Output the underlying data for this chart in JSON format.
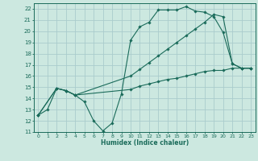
{
  "xlabel": "Humidex (Indice chaleur)",
  "bg_color": "#cce8e0",
  "grid_color": "#aacccc",
  "line_color": "#1a6b5a",
  "xlim": [
    -0.5,
    23.5
  ],
  "ylim": [
    11,
    22.5
  ],
  "xticks": [
    0,
    1,
    2,
    3,
    4,
    5,
    6,
    7,
    8,
    9,
    10,
    11,
    12,
    13,
    14,
    15,
    16,
    17,
    18,
    19,
    20,
    21,
    22,
    23
  ],
  "yticks": [
    11,
    12,
    13,
    14,
    15,
    16,
    17,
    18,
    19,
    20,
    21,
    22
  ],
  "line1_x": [
    0,
    1,
    2,
    3,
    4,
    5,
    6,
    7,
    8,
    9,
    10,
    11,
    12,
    13,
    14,
    15,
    16,
    17,
    18,
    19,
    20,
    21,
    22,
    23
  ],
  "line1_y": [
    12.5,
    13.0,
    14.9,
    14.7,
    14.3,
    13.7,
    12.0,
    11.1,
    11.8,
    14.4,
    19.2,
    20.4,
    20.8,
    21.9,
    21.9,
    21.9,
    22.2,
    21.8,
    21.7,
    21.3,
    19.9,
    17.1,
    16.7,
    16.7
  ],
  "line2_x": [
    0,
    2,
    3,
    4,
    10,
    11,
    12,
    13,
    14,
    15,
    16,
    17,
    18,
    19,
    20,
    21,
    22,
    23
  ],
  "line2_y": [
    12.5,
    14.9,
    14.7,
    14.3,
    16.0,
    16.6,
    17.2,
    17.8,
    18.4,
    19.0,
    19.6,
    20.2,
    20.8,
    21.5,
    21.3,
    17.1,
    16.7,
    16.7
  ],
  "line3_x": [
    0,
    2,
    3,
    4,
    10,
    11,
    12,
    13,
    14,
    15,
    16,
    17,
    18,
    19,
    20,
    21,
    22,
    23
  ],
  "line3_y": [
    12.5,
    14.9,
    14.7,
    14.3,
    14.8,
    15.1,
    15.3,
    15.5,
    15.7,
    15.8,
    16.0,
    16.2,
    16.4,
    16.5,
    16.5,
    16.7,
    16.7,
    16.7
  ]
}
